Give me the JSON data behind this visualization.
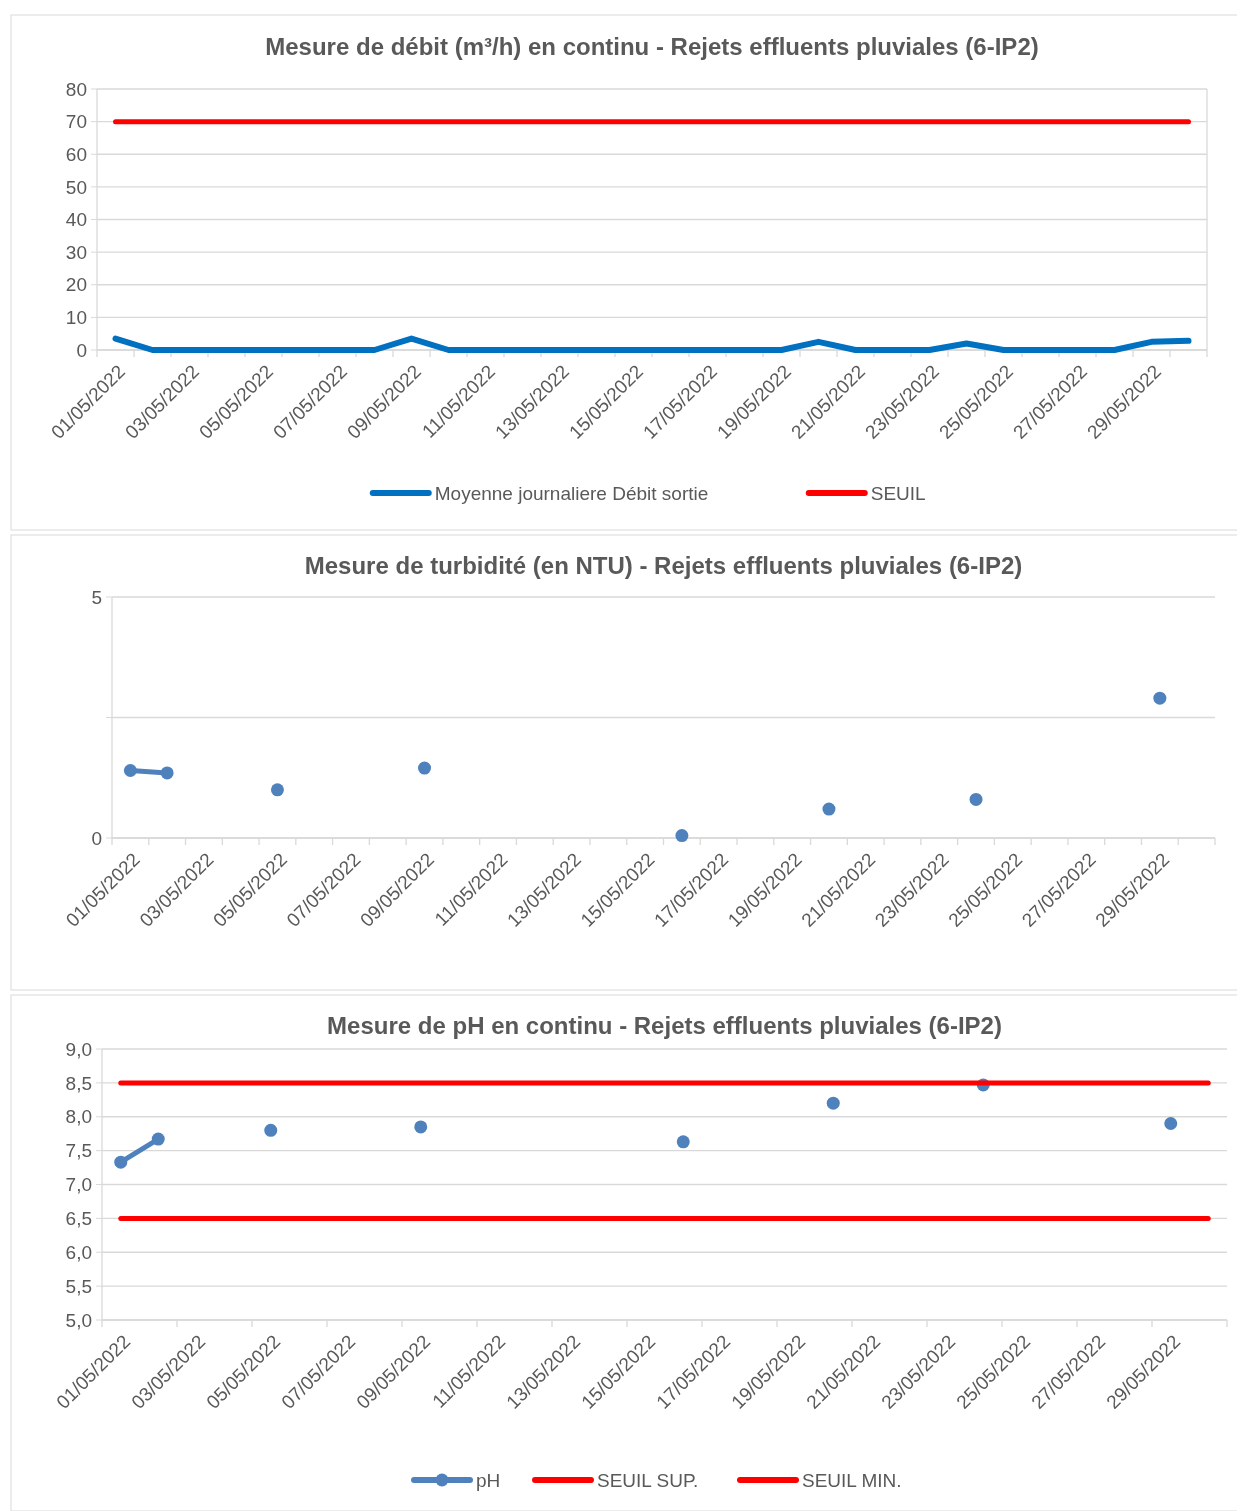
{
  "chart_data": [
    {
      "type": "line",
      "title": "Mesure de débit (m³/h) en continu - Rejets effluents pluviales (6-IP2)",
      "categories": [
        "01/05/2022",
        null,
        "03/05/2022",
        null,
        "05/05/2022",
        null,
        "07/05/2022",
        null,
        "09/05/2022",
        null,
        "11/05/2022",
        null,
        "13/05/2022",
        null,
        "15/05/2022",
        null,
        "17/05/2022",
        null,
        "19/05/2022",
        null,
        "21/05/2022",
        null,
        "23/05/2022",
        null,
        "25/05/2022",
        null,
        "27/05/2022",
        null,
        "29/05/2022",
        null
      ],
      "series": [
        {
          "name": "Moyenne journaliere Débit sortie",
          "color": "#0070c0",
          "values": [
            3.5,
            0,
            0,
            0,
            0,
            0,
            0,
            0,
            3.5,
            0,
            0,
            0,
            0,
            0,
            0,
            0,
            0,
            0,
            0,
            2.5,
            0,
            0,
            0,
            2,
            0,
            0,
            0,
            0,
            2.5,
            2.8
          ]
        },
        {
          "name": "SEUIL",
          "color": "#ff0000",
          "values": [
            70,
            70,
            70,
            70,
            70,
            70,
            70,
            70,
            70,
            70,
            70,
            70,
            70,
            70,
            70,
            70,
            70,
            70,
            70,
            70,
            70,
            70,
            70,
            70,
            70,
            70,
            70,
            70,
            70,
            70
          ]
        }
      ],
      "ylim": [
        0,
        80
      ],
      "yticks": [
        0,
        10,
        20,
        30,
        40,
        50,
        60,
        70,
        80
      ],
      "grid": "y",
      "legend": "bottom",
      "marker": "none"
    },
    {
      "type": "line",
      "title": "Mesure de turbidité (en NTU) - Rejets effluents pluviales (6-IP2)",
      "categories": [
        "01/05/2022",
        null,
        "03/05/2022",
        null,
        "05/05/2022",
        null,
        "07/05/2022",
        null,
        "09/05/2022",
        null,
        "11/05/2022",
        null,
        "13/05/2022",
        null,
        "15/05/2022",
        null,
        "17/05/2022",
        null,
        "19/05/2022",
        null,
        "21/05/2022",
        null,
        "23/05/2022",
        null,
        "25/05/2022",
        null,
        "27/05/2022",
        null,
        "29/05/2022",
        null
      ],
      "series": [
        {
          "color": "#4f81bd",
          "values": [
            1.4,
            1.35,
            null,
            null,
            1.0,
            null,
            null,
            null,
            1.45,
            null,
            null,
            null,
            null,
            null,
            null,
            0.05,
            null,
            null,
            null,
            0.6,
            null,
            null,
            null,
            0.8,
            null,
            null,
            null,
            null,
            2.9,
            null
          ]
        }
      ],
      "ylim": [
        0,
        5
      ],
      "yticks": [
        0,
        {
          "value": 2.5,
          "label": null
        },
        5
      ],
      "grid": "y",
      "legend": false,
      "marker": "circle"
    },
    {
      "type": "line",
      "title": "Mesure de pH en continu - Rejets effluents pluviales (6-IP2)",
      "categories": [
        "01/05/2022",
        null,
        "03/05/2022",
        null,
        "05/05/2022",
        null,
        "07/05/2022",
        null,
        "09/05/2022",
        null,
        "11/05/2022",
        null,
        "13/05/2022",
        null,
        "15/05/2022",
        null,
        "17/05/2022",
        null,
        "19/05/2022",
        null,
        "21/05/2022",
        null,
        "23/05/2022",
        null,
        "25/05/2022",
        null,
        "27/05/2022",
        null,
        "29/05/2022",
        null
      ],
      "series": [
        {
          "name": "pH",
          "color": "#4f81bd",
          "marker": "circle",
          "values": [
            7.33,
            7.67,
            null,
            null,
            7.8,
            null,
            null,
            null,
            7.85,
            null,
            null,
            null,
            null,
            null,
            null,
            7.63,
            null,
            null,
            null,
            8.2,
            null,
            null,
            null,
            8.47,
            null,
            null,
            null,
            null,
            7.9,
            null
          ]
        },
        {
          "name": "SEUIL SUP.",
          "color": "#ff0000",
          "marker": "none",
          "values": [
            8.5,
            8.5,
            8.5,
            8.5,
            8.5,
            8.5,
            8.5,
            8.5,
            8.5,
            8.5,
            8.5,
            8.5,
            8.5,
            8.5,
            8.5,
            8.5,
            8.5,
            8.5,
            8.5,
            8.5,
            8.5,
            8.5,
            8.5,
            8.5,
            8.5,
            8.5,
            8.5,
            8.5,
            8.5,
            8.5
          ]
        },
        {
          "name": "SEUIL MIN.",
          "color": "#ff0000",
          "marker": "none",
          "values": [
            6.5,
            6.5,
            6.5,
            6.5,
            6.5,
            6.5,
            6.5,
            6.5,
            6.5,
            6.5,
            6.5,
            6.5,
            6.5,
            6.5,
            6.5,
            6.5,
            6.5,
            6.5,
            6.5,
            6.5,
            6.5,
            6.5,
            6.5,
            6.5,
            6.5,
            6.5,
            6.5,
            6.5,
            6.5,
            6.5
          ]
        }
      ],
      "ylim": [
        5,
        9
      ],
      "yticks": [
        {
          "value": 5,
          "label": "5,0"
        },
        {
          "value": 5.5,
          "label": "5,5"
        },
        {
          "value": 6,
          "label": "6,0"
        },
        {
          "value": 6.5,
          "label": "6,5"
        },
        {
          "value": 7,
          "label": "7,0"
        },
        {
          "value": 7.5,
          "label": "7,5"
        },
        {
          "value": 8,
          "label": "8,0"
        },
        {
          "value": 8.5,
          "label": "8,5"
        },
        {
          "value": 9,
          "label": "9,0"
        }
      ],
      "grid": "y",
      "legend": "bottom"
    }
  ]
}
